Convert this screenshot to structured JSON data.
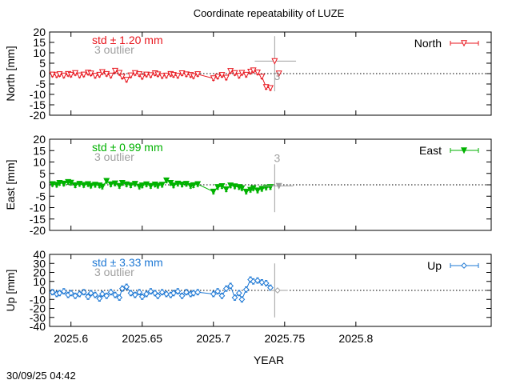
{
  "figure": {
    "title": "Coordinate repeatability of LUZE",
    "xlabel": "YEAR",
    "timestamp": "30/09/25 04:42"
  },
  "chart_data": [
    {
      "type": "scatter",
      "panel": "north",
      "title": "Coordinate repeatability of LUZE",
      "ylabel": "North [mm]",
      "xlabel": "",
      "xlim": [
        2025.585,
        2025.895
      ],
      "ylim": [
        -20,
        20
      ],
      "xticks": [
        2025.6,
        2025.65,
        2025.7,
        2025.75,
        2025.8
      ],
      "xticklabels": [],
      "yticks": [
        -20,
        -15,
        -10,
        -5,
        0,
        5,
        10,
        15,
        20
      ],
      "yticklabels": [
        "-20",
        "-15",
        "-10",
        "-5",
        "0",
        "5",
        "10",
        "15",
        "20"
      ],
      "legend": {
        "label": "North",
        "position": "top-right",
        "marker": "triangle-down-open"
      },
      "color": "#e8171f",
      "std_text": "std ± 1.20 mm",
      "outlier_text": "3 outlier",
      "outlier_marker_label": "3",
      "zero_line": true,
      "error_bar_half_height": 1.0,
      "series": [
        {
          "name": "North",
          "x": [
            2025.587,
            2025.59,
            2025.592,
            2025.595,
            2025.598,
            2025.6,
            2025.603,
            2025.606,
            2025.609,
            2025.612,
            2025.614,
            2025.617,
            2025.62,
            2025.622,
            2025.625,
            2025.628,
            2025.631,
            2025.634,
            2025.636,
            2025.639,
            2025.642,
            2025.645,
            2025.648,
            2025.65,
            2025.653,
            2025.656,
            2025.659,
            2025.661,
            2025.664,
            2025.667,
            2025.67,
            2025.672,
            2025.675,
            2025.678,
            2025.681,
            2025.684,
            2025.686,
            2025.689,
            2025.7,
            2025.703,
            2025.706,
            2025.709,
            2025.712,
            2025.715,
            2025.718,
            2025.72,
            2025.723,
            2025.726,
            2025.728,
            2025.731,
            2025.734,
            2025.737,
            2025.74
          ],
          "values": [
            -0.5,
            -0.8,
            -0.3,
            -1.0,
            -0.2,
            -0.6,
            0.2,
            -0.9,
            -0.5,
            0.4,
            0.0,
            -1.1,
            -0.6,
            0.7,
            -0.2,
            -1.0,
            1.3,
            0.3,
            -1.5,
            -3.0,
            -0.9,
            0.2,
            -0.3,
            -1.6,
            -0.5,
            -0.8,
            0.1,
            -0.4,
            -1.2,
            -1.0,
            -0.2,
            -0.7,
            -1.1,
            0.1,
            -0.4,
            -0.7,
            -1.3,
            -0.3,
            -2.3,
            -1.5,
            -0.7,
            -2.0,
            1.2,
            0.2,
            -1.1,
            0.3,
            -0.6,
            0.9,
            1.5,
            0.5,
            -1.5,
            -6.5,
            -7.0
          ]
        }
      ],
      "outliers": {
        "x": [
          2025.743,
          2025.746
        ],
        "values": [
          6.0,
          0.0
        ],
        "big_errorbar_x": 2025.743,
        "big_errorbar_y": [
          -8.5,
          18.0
        ],
        "big_errorbar_xerr": [
          2025.729,
          2025.758
        ]
      },
      "late_points": {
        "x": [
          2025.737,
          2025.74
        ],
        "values": [
          -5.0,
          -3.5
        ]
      }
    },
    {
      "type": "scatter",
      "panel": "east",
      "ylabel": "East [mm]",
      "xlim": [
        2025.585,
        2025.895
      ],
      "ylim": [
        -20,
        20
      ],
      "xticks": [
        2025.6,
        2025.65,
        2025.7,
        2025.75,
        2025.8
      ],
      "xticklabels": [],
      "yticks": [
        -20,
        -15,
        -10,
        -5,
        0,
        5,
        10,
        15,
        20
      ],
      "yticklabels": [
        "-20",
        "-15",
        "-10",
        "-5",
        "0",
        "5",
        "10",
        "15",
        "20"
      ],
      "legend": {
        "label": "East",
        "position": "top-right",
        "marker": "triangle-down-filled"
      },
      "color": "#00b200",
      "std_text": "std ± 0.99 mm",
      "outlier_text": "3 outlier",
      "outlier_marker_label": "3",
      "zero_line": true,
      "error_bar_half_height": 1.0,
      "series": [
        {
          "name": "East",
          "x": [
            2025.587,
            2025.59,
            2025.592,
            2025.595,
            2025.598,
            2025.6,
            2025.603,
            2025.606,
            2025.609,
            2025.612,
            2025.614,
            2025.617,
            2025.62,
            2025.622,
            2025.625,
            2025.628,
            2025.631,
            2025.634,
            2025.636,
            2025.639,
            2025.642,
            2025.645,
            2025.648,
            2025.65,
            2025.653,
            2025.656,
            2025.659,
            2025.661,
            2025.664,
            2025.667,
            2025.67,
            2025.672,
            2025.675,
            2025.678,
            2025.681,
            2025.684,
            2025.686,
            2025.689,
            2025.7,
            2025.703,
            2025.706,
            2025.709,
            2025.712,
            2025.715,
            2025.718,
            2025.72,
            2025.723,
            2025.726,
            2025.728,
            2025.731,
            2025.734,
            2025.737,
            2025.74
          ],
          "values": [
            0.3,
            0.0,
            0.8,
            0.5,
            1.2,
            0.9,
            -0.2,
            0.4,
            -0.1,
            0.3,
            -0.4,
            0.0,
            -0.3,
            -0.8,
            1.7,
            0.2,
            0.6,
            -0.5,
            0.8,
            0.2,
            -0.2,
            0.4,
            -0.8,
            -0.3,
            0.2,
            -0.5,
            0.1,
            -0.4,
            0.0,
            1.9,
            0.8,
            -0.3,
            0.5,
            0.1,
            0.4,
            -0.5,
            -0.2,
            0.3,
            -3.0,
            -1.0,
            -0.6,
            -2.0,
            -0.3,
            -0.7,
            -1.0,
            -1.5,
            -3.0,
            -2.2,
            -1.5,
            -2.5,
            -1.8,
            -1.2,
            -1.0
          ]
        }
      ],
      "outliers": {
        "x": [
          2025.746
        ],
        "values": [
          -0.5
        ],
        "big_errorbar_x": 2025.743,
        "big_errorbar_y": [
          -12.0,
          9.0
        ],
        "big_errorbar_xerr": [
          2025.735,
          2025.756
        ]
      }
    },
    {
      "type": "scatter",
      "panel": "up",
      "ylabel": "Up [mm]",
      "xlabel": "YEAR",
      "xlim": [
        2025.585,
        2025.895
      ],
      "ylim": [
        -40,
        40
      ],
      "xticks": [
        2025.6,
        2025.65,
        2025.7,
        2025.75,
        2025.8
      ],
      "xticklabels": [
        "2025.6",
        "2025.65",
        "2025.7",
        "2025.75",
        "2025.8"
      ],
      "yticks": [
        -40,
        -30,
        -20,
        -10,
        0,
        10,
        20,
        30,
        40
      ],
      "yticklabels": [
        "-40",
        "-30",
        "-20",
        "-10",
        "0",
        "10",
        "20",
        "30",
        "40"
      ],
      "legend": {
        "label": "Up",
        "position": "top-right",
        "marker": "diamond-open"
      },
      "color": "#1e78d4",
      "std_text": "std ± 3.33 mm",
      "outlier_text": "3 outlier",
      "outlier_marker_label": "",
      "zero_line": true,
      "error_bar_half_height": 3.0,
      "series": [
        {
          "name": "Up",
          "x": [
            2025.587,
            2025.59,
            2025.592,
            2025.595,
            2025.598,
            2025.6,
            2025.603,
            2025.606,
            2025.609,
            2025.612,
            2025.614,
            2025.617,
            2025.62,
            2025.622,
            2025.625,
            2025.628,
            2025.631,
            2025.634,
            2025.636,
            2025.639,
            2025.642,
            2025.645,
            2025.648,
            2025.65,
            2025.653,
            2025.656,
            2025.659,
            2025.661,
            2025.664,
            2025.667,
            2025.67,
            2025.672,
            2025.675,
            2025.678,
            2025.681,
            2025.684,
            2025.686,
            2025.689,
            2025.7,
            2025.703,
            2025.706,
            2025.709,
            2025.712,
            2025.715,
            2025.718,
            2025.72,
            2025.723,
            2025.726,
            2025.728,
            2025.731,
            2025.734,
            2025.737,
            2025.74
          ],
          "values": [
            -2,
            -4,
            -3,
            -1,
            -5,
            -3,
            -6,
            -4,
            -2,
            -7,
            -3,
            -5,
            -9,
            -4,
            -6,
            -2,
            -5,
            -8,
            2,
            4,
            -3,
            -5,
            -2,
            -7,
            -4,
            -1,
            -3,
            -6,
            -2,
            -4,
            -5,
            -3,
            -1,
            -6,
            -2,
            -4,
            -3,
            -2,
            -4,
            -1,
            -6,
            2,
            5,
            -8,
            -3,
            -10,
            1,
            12,
            10,
            11,
            9,
            8,
            3
          ]
        }
      ],
      "outliers": {
        "x": [
          2025.745
        ],
        "values": [
          0.0
        ],
        "big_errorbar_x": 2025.743,
        "big_errorbar_y": [
          -30.0,
          30.0
        ],
        "big_errorbar_xerr": [
          2025.74,
          2025.752
        ]
      }
    }
  ]
}
